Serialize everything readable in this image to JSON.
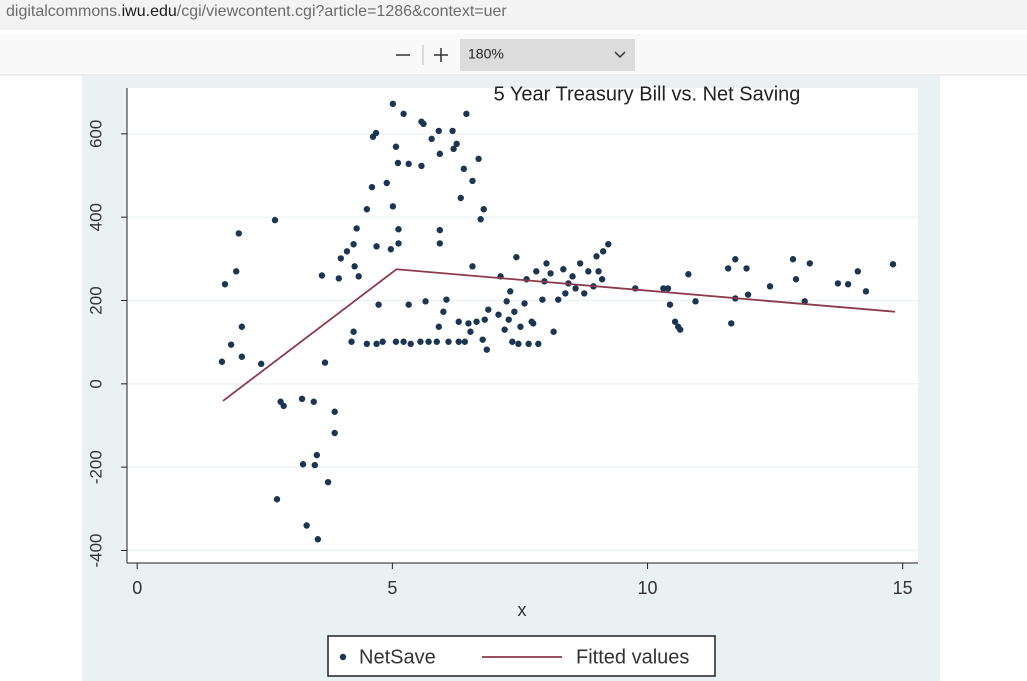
{
  "browser": {
    "url_prefix": "digitalcommons.",
    "url_domain": "iwu.edu",
    "url_path": "/cgi/viewcontent.cgi?article=1286&context=uer",
    "zoom": "180%"
  },
  "chart_data": {
    "type": "scatter",
    "title": "5 Year Treasury Bill vs. Net Saving",
    "x_label": "x",
    "xlim": [
      -0.2,
      15.3
    ],
    "ylim": [
      -430,
      710
    ],
    "xticks": [
      0,
      5,
      10,
      15
    ],
    "yticks": [
      -400,
      -200,
      0,
      200,
      400,
      600
    ],
    "grid": true,
    "series": [
      {
        "name": "NetSave",
        "type": "scatter",
        "color": "#1c3550",
        "x": [
          1.66,
          1.72,
          1.84,
          1.94,
          1.99,
          2.05,
          2.05,
          2.43,
          2.7,
          2.74,
          2.81,
          2.87,
          3.23,
          3.25,
          3.32,
          3.46,
          3.48,
          3.52,
          3.54,
          3.62,
          3.68,
          3.74,
          3.87,
          3.87,
          3.95,
          3.99,
          4.11,
          4.2,
          4.24,
          4.24,
          4.26,
          4.3,
          4.34,
          4.5,
          4.5,
          4.6,
          4.62,
          4.68,
          4.69,
          4.73,
          4.69,
          4.81,
          4.89,
          4.97,
          5.01,
          5.01,
          5.07,
          5.07,
          5.11,
          5.12,
          5.12,
          5.22,
          5.22,
          5.32,
          5.32,
          5.36,
          5.55,
          5.57,
          5.57,
          5.61,
          5.65,
          5.71,
          5.77,
          5.87,
          5.91,
          5.93,
          5.93,
          5.93,
          5.91,
          6.0,
          6.06,
          6.1,
          6.18,
          6.2,
          6.26,
          6.3,
          6.3,
          6.34,
          6.4,
          6.42,
          6.45,
          6.49,
          6.53,
          6.57,
          6.57,
          6.65,
          6.69,
          6.73,
          6.79,
          6.77,
          6.85,
          6.81,
          6.88,
          7.08,
          7.12,
          7.2,
          7.24,
          7.28,
          7.31,
          7.35,
          7.39,
          7.43,
          7.47,
          7.51,
          7.59,
          7.63,
          7.67,
          7.73,
          7.76,
          7.82,
          7.86,
          7.94,
          7.98,
          8.02,
          8.1,
          8.16,
          8.25,
          8.35,
          8.39,
          8.45,
          8.53,
          8.59,
          8.68,
          8.76,
          8.84,
          8.94,
          9.0,
          9.04,
          9.11,
          9.13,
          9.23,
          9.76,
          10.31,
          10.4,
          10.44,
          10.54,
          10.6,
          10.64,
          10.8,
          10.94,
          11.58,
          11.64,
          11.72,
          11.72,
          11.94,
          11.97,
          12.4,
          12.85,
          12.91,
          13.08,
          13.18,
          13.73,
          13.93,
          14.12,
          14.28,
          14.81
        ],
        "values": [
          53,
          239,
          94,
          270,
          361,
          137,
          65,
          48,
          393,
          -277,
          -43,
          -53,
          -36,
          -193,
          -340,
          -43,
          -195,
          -171,
          -373,
          260,
          51,
          -236,
          -67,
          -118,
          253,
          301,
          318,
          101,
          125,
          335,
          282,
          373,
          258,
          96,
          419,
          472,
          593,
          602,
          96,
          190,
          330,
          101,
          482,
          323,
          426,
          672,
          569,
          101,
          530,
          371,
          337,
          648,
          101,
          528,
          190,
          96,
          101,
          523,
          629,
          624,
          198,
          101,
          588,
          101,
          607,
          552,
          369,
          337,
          137,
          173,
          202,
          101,
          607,
          564,
          576,
          101,
          149,
          446,
          516,
          101,
          648,
          145,
          125,
          282,
          487,
          149,
          540,
          395,
          419,
          106,
          82,
          154,
          178,
          166,
          258,
          130,
          198,
          154,
          222,
          101,
          173,
          304,
          96,
          137,
          193,
          251,
          96,
          149,
          145,
          270,
          96,
          202,
          246,
          289,
          265,
          125,
          202,
          275,
          217,
          241,
          258,
          229,
          289,
          217,
          270,
          234,
          306,
          270,
          251,
          318,
          335,
          229,
          229,
          229,
          190,
          149,
          137,
          130,
          263,
          198,
          277,
          145,
          299,
          205,
          277,
          214,
          234,
          299,
          251,
          198,
          289,
          241,
          239,
          270,
          222,
          287
        ]
      },
      {
        "name": "Fitted values",
        "type": "line",
        "color": "#8c3a4c",
        "x": [
          1.68,
          5.08,
          14.85
        ],
        "values": [
          -41,
          275,
          173
        ]
      }
    ]
  }
}
